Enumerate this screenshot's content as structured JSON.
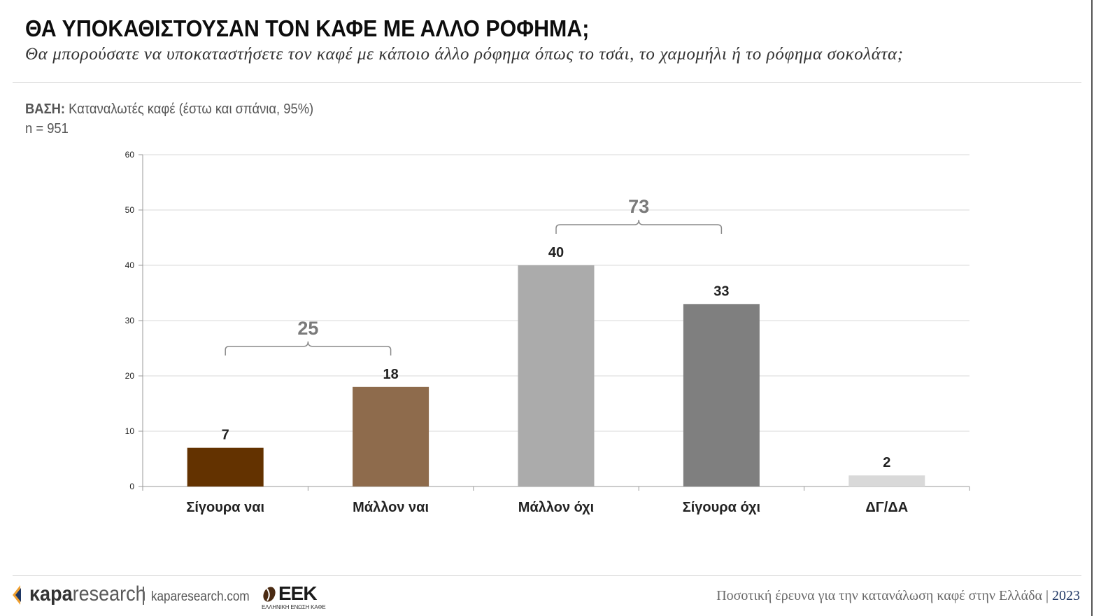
{
  "header": {
    "title": "ΘΑ ΥΠΟΚΑΘΙΣΤΟΥΣΑΝ ΤΟΝ ΚΑΦΕ ΜΕ ΑΛΛΟ ΡΟΦΗΜΑ;",
    "subtitle": "Θα μπορούσατε να υποκαταστήσετε τον καφέ με κάποιο άλλο ρόφημα όπως το τσάι, το χαμομήλι ή το ρόφημα σοκολάτα;"
  },
  "base": {
    "label": "ΒΑΣΗ:",
    "text": "Καταναλωτές καφέ (έστω και σπάνια, 95%)",
    "n": "n = 951"
  },
  "chart_data": {
    "type": "bar",
    "categories": [
      "Σίγουρα ναι",
      "Μάλλον ναι",
      "Μάλλον όχι",
      "Σίγουρα όχι",
      "ΔΓ/ΔΑ"
    ],
    "values": [
      7,
      18,
      40,
      33,
      2
    ],
    "colors": [
      "#633200",
      "#8e6b4c",
      "#ababab",
      "#7f7f7f",
      "#d9d9d9"
    ],
    "ylim": [
      0,
      60
    ],
    "yticks": [
      0,
      10,
      20,
      30,
      40,
      50,
      60
    ],
    "grid": true,
    "groups": [
      {
        "label": "25",
        "from": 0,
        "to": 1
      },
      {
        "label": "73",
        "from": 2,
        "to": 3
      }
    ],
    "title": "",
    "xlabel": "",
    "ylabel": ""
  },
  "footer": {
    "kapa_brand_bold": "κapa",
    "kapa_brand_rest": "research",
    "kapa_url": "kaparesearch.com",
    "eek_name": "ΕΕΚ",
    "eek_sub": "ΕΛΛΗΝΙΚΗ ΕΝΩΣΗ ΚΑΦΕ",
    "survey_text": "Ποσοτική έρευνα για την κατανάλωση καφέ στην Ελλάδα",
    "separator": "|",
    "year": "2023"
  },
  "colors": {
    "kapa_orange": "#f0a030",
    "kapa_blue": "#1f3764",
    "eek_brown": "#4a2a12"
  }
}
